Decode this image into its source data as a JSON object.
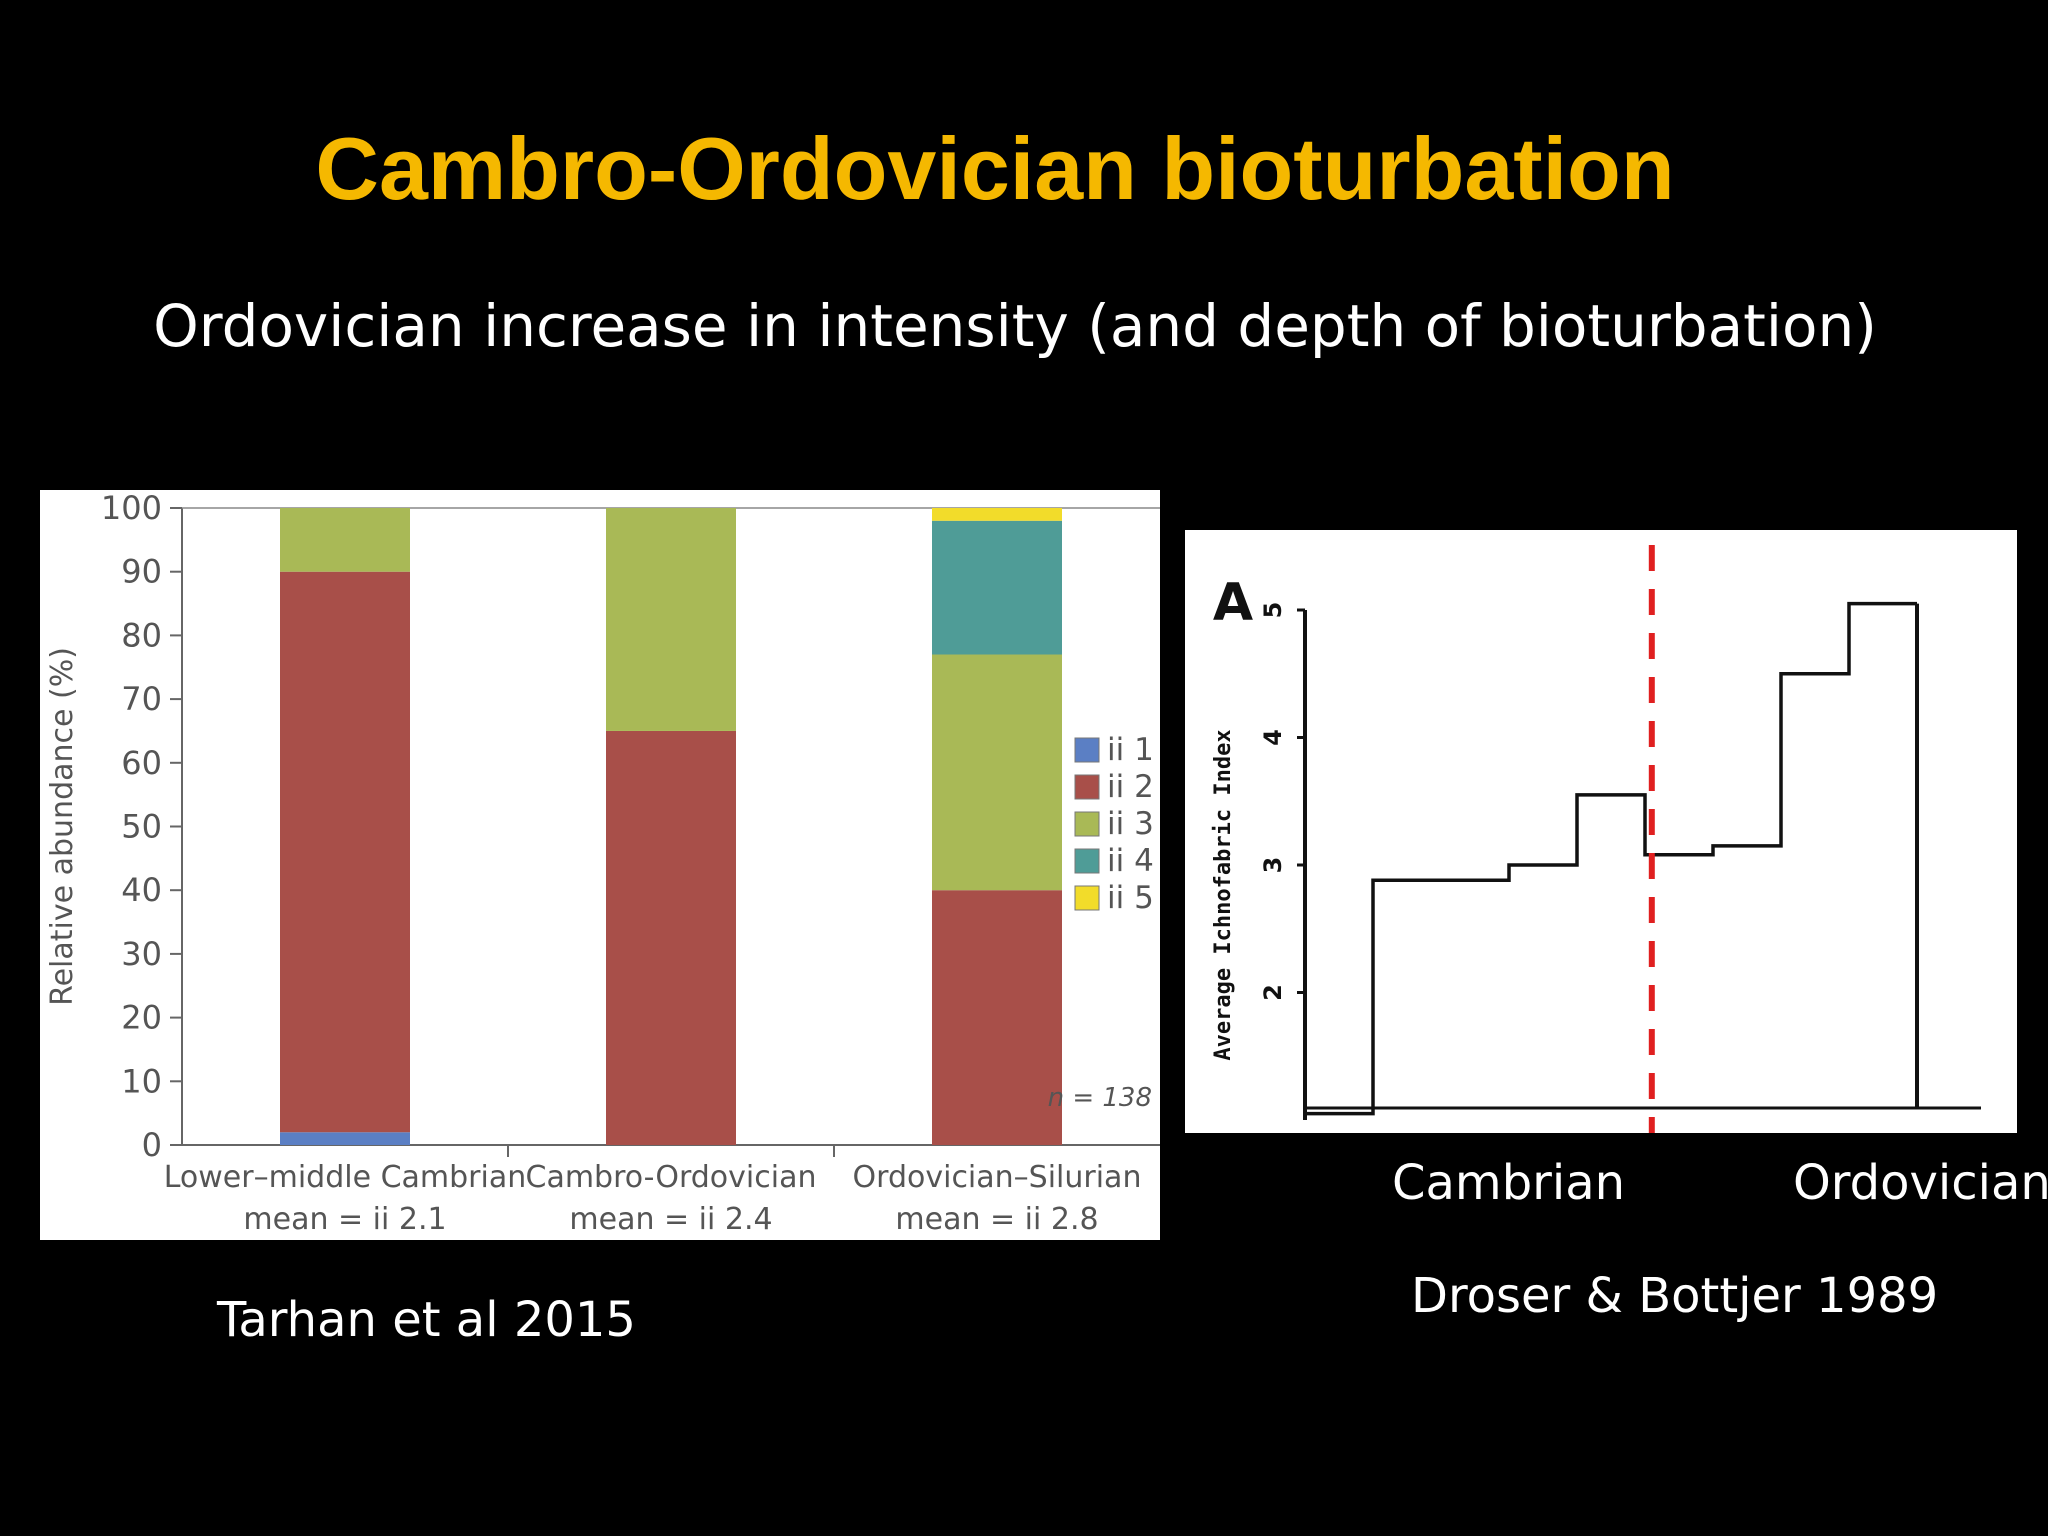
{
  "slide": {
    "title": "Cambro-Ordovician bioturbation",
    "subtitle": "Ordovician increase in intensity (and depth of bioturbation)",
    "title_color": "#f5b800"
  },
  "captions": {
    "left_citation": "Tarhan et al 2015",
    "right_citation": "Droser & Bottjer 1989",
    "right_period_1": "Cambrian",
    "right_period_2": "Ordovician"
  },
  "chart_data": [
    {
      "type": "bar",
      "stacked": true,
      "ylabel": "Relative abundance (%)",
      "ylim": [
        0,
        100
      ],
      "yticks": [
        "0",
        "10",
        "20",
        "30",
        "40",
        "50",
        "60",
        "70",
        "80",
        "90",
        "100"
      ],
      "categories": [
        {
          "label": "Lower–middle Cambrian",
          "sublabel": "mean = ii 2.1"
        },
        {
          "label": "Cambro-Ordovician",
          "sublabel": "mean = ii 2.4"
        },
        {
          "label": "Ordovician–Silurian",
          "sublabel": "mean = ii 2.8"
        }
      ],
      "series": [
        {
          "name": "ii 1",
          "color": "#5b7fc4",
          "values": [
            2,
            0,
            0
          ]
        },
        {
          "name": "ii 2",
          "color": "#a84f49",
          "values": [
            88,
            65,
            40
          ]
        },
        {
          "name": "ii 3",
          "color": "#a9b956",
          "values": [
            10,
            35,
            37
          ]
        },
        {
          "name": "ii 4",
          "color": "#4f9c97",
          "values": [
            0,
            0,
            21
          ]
        },
        {
          "name": "ii 5",
          "color": "#f2dc2a",
          "values": [
            0,
            0,
            2
          ]
        }
      ],
      "annotation": "n = 138"
    },
    {
      "type": "line",
      "step": true,
      "panel_label": "A",
      "ylabel": "Average Ichnofabric Index",
      "yticks": [
        "2",
        "3",
        "4",
        "5"
      ],
      "ylim": [
        1,
        5
      ],
      "xlim": [
        0,
        10
      ],
      "x": [
        0,
        1,
        1,
        3,
        3,
        4,
        4,
        5,
        5,
        6,
        6,
        7,
        7,
        8,
        8,
        9
      ],
      "y": [
        1.05,
        1.05,
        2.88,
        2.88,
        3.0,
        3.0,
        3.55,
        3.55,
        3.08,
        3.08,
        3.15,
        3.15,
        4.5,
        4.5,
        5.05,
        5.05
      ],
      "boundary_x": 5.1,
      "boundary_color": "#e02020"
    }
  ]
}
